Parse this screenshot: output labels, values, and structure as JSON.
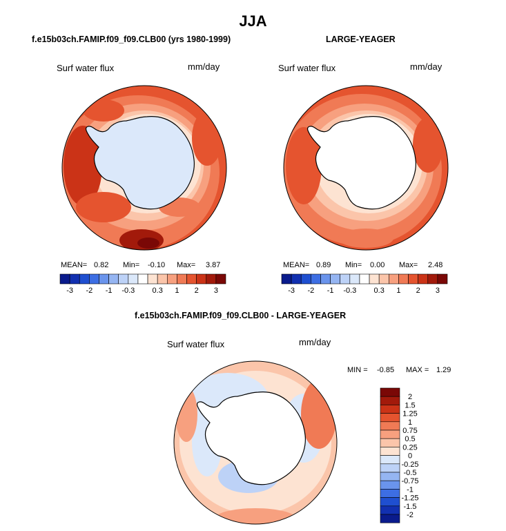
{
  "figure": {
    "title": "JJA",
    "left_title": "f.e15b03ch.FAMIP.f09_f09.CLB00 (yrs 1980-1999)",
    "right_title": "LARGE-YEAGER",
    "diff_title": "f.e15b03ch.FAMIP.f09_f09.CLB00 - LARGE-YEAGER"
  },
  "panels": {
    "left": {
      "variable": "Surf water flux",
      "units": "mm/day",
      "mean_label": "MEAN=",
      "mean": "0.82",
      "min_label": "Min=",
      "min": "-0.10",
      "max_label": "Max=",
      "max": "3.87"
    },
    "right": {
      "variable": "Surf water flux",
      "units": "mm/day",
      "mean_label": "MEAN=",
      "mean": "0.89",
      "min_label": "Min=",
      "min": "0.00",
      "max_label": "Max=",
      "max": "2.48"
    },
    "diff": {
      "variable": "Surf water flux",
      "units": "mm/day",
      "min_label": "MIN =",
      "min": "-0.85",
      "max_label": "MAX =",
      "max": "1.29"
    }
  },
  "chart_data": [
    {
      "type": "polar contour map",
      "title": "Surf water flux",
      "units": "mm/day",
      "projection": "south polar stereographic",
      "stats": {
        "mean": 0.82,
        "min": -0.1,
        "max": 3.87
      },
      "colorbar_levels": [
        -3,
        -2.5,
        -2,
        -1.5,
        -1,
        -0.5,
        -0.3,
        -0.1,
        0.1,
        0.3,
        0.5,
        1,
        1.5,
        2,
        2.5,
        3
      ],
      "colorbar_tick_labels": [
        "-3",
        "-2",
        "-1",
        "-0.3",
        "0.3",
        "1",
        "2",
        "3"
      ],
      "colors": [
        "#0a1b8c",
        "#1230b0",
        "#1f4fd0",
        "#3d6ee3",
        "#6a94ec",
        "#95b5f2",
        "#bdd2f7",
        "#dbe8fa",
        "#ffffff",
        "#fde3d2",
        "#fbc5aa",
        "#f7a07f",
        "#f07a55",
        "#e5542f",
        "#cb3317",
        "#a21a0b",
        "#7a0806"
      ]
    },
    {
      "type": "polar contour map",
      "title": "Surf water flux",
      "units": "mm/day",
      "projection": "south polar stereographic",
      "stats": {
        "mean": 0.89,
        "min": 0.0,
        "max": 2.48
      },
      "colorbar_levels": [
        -3,
        -2.5,
        -2,
        -1.5,
        -1,
        -0.5,
        -0.3,
        -0.1,
        0.1,
        0.3,
        0.5,
        1,
        1.5,
        2,
        2.5,
        3
      ],
      "colorbar_tick_labels": [
        "-3",
        "-2",
        "-1",
        "-0.3",
        "0.3",
        "1",
        "2",
        "3"
      ]
    },
    {
      "type": "polar contour map",
      "title": "Surf water flux",
      "units": "mm/day",
      "projection": "south polar stereographic",
      "stats": {
        "min": -0.85,
        "max": 1.29
      },
      "colorbar_levels": [
        -2,
        -1.5,
        -1.25,
        -1,
        -0.75,
        -0.5,
        -0.25,
        0,
        0.25,
        0.5,
        0.75,
        1,
        1.25,
        1.5,
        2
      ],
      "colorbar_tick_labels": [
        "2",
        "1.5",
        "1.25",
        "1",
        "0.75",
        "0.5",
        "0.25",
        "0",
        "-0.25",
        "-0.5",
        "-0.75",
        "-1",
        "-1.25",
        "-1.5",
        "-2"
      ],
      "colors": [
        "#7a0806",
        "#a21a0b",
        "#cb3317",
        "#e5542f",
        "#f07a55",
        "#f7a07f",
        "#fbc5aa",
        "#fde3d2",
        "#dbe8fa",
        "#bdd2f7",
        "#95b5f2",
        "#6a94ec",
        "#3d6ee3",
        "#1f4fd0",
        "#1230b0",
        "#0a1b8c"
      ]
    }
  ]
}
